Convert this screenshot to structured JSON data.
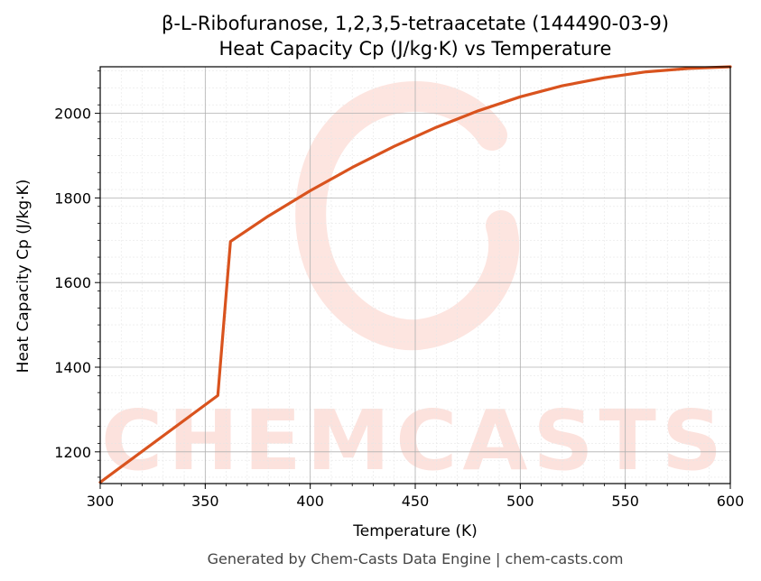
{
  "chart_data": {
    "type": "line",
    "title": "β-L-Ribofuranose, 1,2,3,5-tetraacetate (144490-03-9)",
    "subtitle": "Heat Capacity Cp (J/kg·K) vs Temperature",
    "xlabel": "Temperature (K)",
    "ylabel": "Heat Capacity Cp (J/kg·K)",
    "xlim": [
      300,
      600
    ],
    "ylim": [
      1125,
      2110
    ],
    "x_ticks": [
      300,
      350,
      400,
      450,
      500,
      550,
      600
    ],
    "y_ticks": [
      1200,
      1400,
      1600,
      1800,
      2000
    ],
    "grid": true,
    "line_color": "#d9531e",
    "series": [
      {
        "x": [
          300,
          356,
          362,
          380,
          400,
          420,
          440,
          460,
          480,
          500,
          520,
          540,
          560,
          580,
          600
        ],
        "values": [
          1128,
          1333,
          1697,
          1757,
          1817,
          1872,
          1922,
          1967,
          2006,
          2039,
          2065,
          2084,
          2098,
          2106,
          2110
        ]
      }
    ]
  },
  "watermark": {
    "text": "CHEMCASTS",
    "color": "#fbd3cb"
  },
  "footer": "Generated by Chem-Casts Data Engine | chem-casts.com"
}
